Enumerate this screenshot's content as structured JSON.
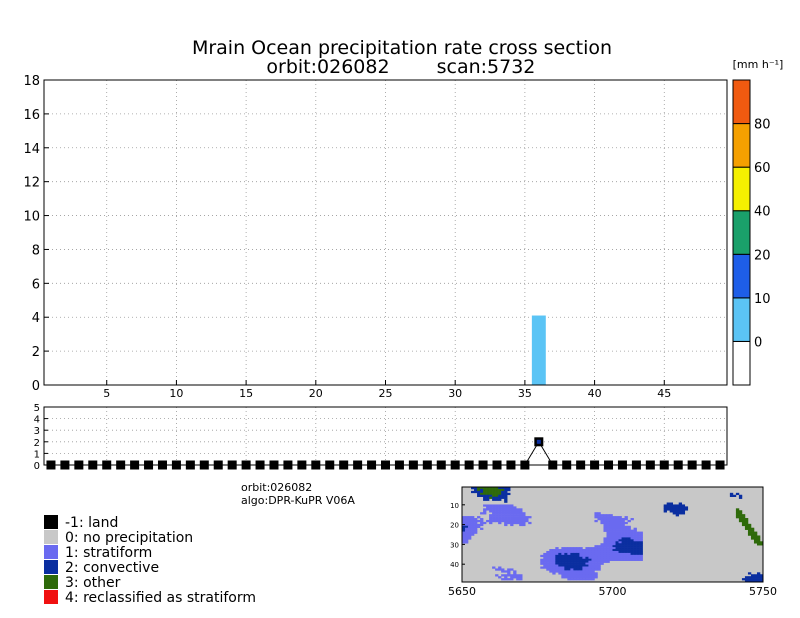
{
  "title": {
    "line1": "Mrain Ocean precipitation rate cross section",
    "line2_orbit": "orbit:026082",
    "line2_scan": "scan:5732"
  },
  "colorbar": {
    "unit_label": "[mm h⁻¹]",
    "colors": [
      "#ffffff",
      "#5bc4f5",
      "#1e5ee8",
      "#1aa06a",
      "#f5f000",
      "#f5a000",
      "#f05a10"
    ],
    "tick_labels": [
      "0",
      "10",
      "20",
      "40",
      "60",
      "80"
    ]
  },
  "info": {
    "orbit": "orbit:026082",
    "algo": "algo:DPR-KuPR V06A"
  },
  "legend": {
    "items": [
      {
        "label": "-1: land",
        "color": "#000000"
      },
      {
        "label": "0: no precipitation",
        "color": "#c8c8c8"
      },
      {
        "label": "1: stratiform",
        "color": "#6a6af0"
      },
      {
        "label": "2: convective",
        "color": "#0a2ea0"
      },
      {
        "label": "3: other",
        "color": "#2e6a0a"
      },
      {
        "label": "4: reclassified as stratiform",
        "color": "#f01010"
      }
    ]
  },
  "chart_data": [
    {
      "type": "bar",
      "x_range": [
        0.5,
        49.5
      ],
      "ylim": [
        0,
        18
      ],
      "xticks": [
        5,
        10,
        15,
        20,
        25,
        30,
        35,
        40,
        45
      ],
      "yticks": [
        0,
        2,
        4,
        6,
        8,
        10,
        12,
        14,
        16,
        18
      ],
      "grid": true,
      "bars": [
        {
          "x": 36,
          "ymax": 4.1,
          "color": "#5bc4f5"
        }
      ]
    },
    {
      "type": "scatter",
      "x_range": [
        0.5,
        49.5
      ],
      "ylim": [
        0,
        5
      ],
      "yticks": [
        0,
        1,
        2,
        3,
        4,
        5
      ],
      "grid": true,
      "land_points_y0": [
        1,
        2,
        3,
        4,
        5,
        6,
        7,
        8,
        9,
        10,
        11,
        12,
        13,
        14,
        15,
        16,
        17,
        18,
        19,
        20,
        21,
        22,
        23,
        24,
        25,
        26,
        27,
        28,
        29,
        30,
        31,
        32,
        33,
        34,
        35,
        37,
        38,
        39,
        40,
        41,
        42,
        43,
        44,
        45,
        46,
        47,
        48,
        49
      ],
      "convective_point": {
        "x": 36,
        "y": 2
      }
    },
    {
      "type": "heatmap",
      "xticks": [
        5650,
        5700,
        5750
      ],
      "yticks": [
        10,
        20,
        30,
        40
      ],
      "x_range": [
        5650,
        5750
      ],
      "y_range": [
        1,
        49
      ]
    }
  ]
}
